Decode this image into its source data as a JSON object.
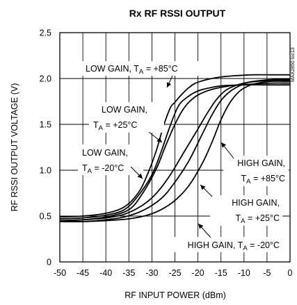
{
  "chart_data": {
    "type": "line",
    "title": "Rx RF RSSI OUTPUT",
    "xlabel": "RF INPUT POWER (dBm)",
    "ylabel": "RF RSSI OUTPUT VOLTAGE (V)",
    "xlim": [
      -50,
      0
    ],
    "ylim": [
      0,
      2.5
    ],
    "xticks": [
      "-50",
      "-45",
      "-40",
      "-35",
      "-30",
      "-25",
      "-20",
      "-15",
      "-10",
      "-5",
      "0"
    ],
    "yticks": [
      "0",
      "0.5",
      "1.0",
      "1.5",
      "2.0",
      "2.5"
    ],
    "grid": true,
    "watermark": "MAX2850 toc13",
    "series": [
      {
        "name": "LOW GAIN, TA = +85°C",
        "x": [
          -50,
          -45,
          -40,
          -36,
          -33,
          -31,
          -29,
          -27.5,
          -26,
          -25,
          -24,
          -22,
          -20,
          -16,
          -12,
          -8,
          -4,
          0
        ],
        "y": [
          0.49,
          0.5,
          0.53,
          0.6,
          0.75,
          0.95,
          1.22,
          1.48,
          1.68,
          1.74,
          1.8,
          1.9,
          1.96,
          2.01,
          2.03,
          2.04,
          2.04,
          2.04
        ]
      },
      {
        "name": "LOW GAIN, TA = +25°C",
        "x": [
          -50,
          -45,
          -40,
          -36,
          -33,
          -30,
          -28,
          -26.5,
          -25,
          -24,
          -23,
          -21,
          -19,
          -15,
          -10,
          -5,
          0
        ],
        "y": [
          0.47,
          0.48,
          0.51,
          0.57,
          0.72,
          0.95,
          1.2,
          1.42,
          1.62,
          1.72,
          1.77,
          1.84,
          1.88,
          1.92,
          1.93,
          1.93,
          1.93
        ]
      },
      {
        "name": "LOW GAIN, TA = -20°C",
        "x": [
          -50,
          -45,
          -40,
          -35,
          -32,
          -29,
          -27,
          -25,
          -23.5,
          -22,
          -20,
          -17,
          -13,
          -8,
          -4,
          0
        ],
        "y": [
          0.45,
          0.46,
          0.49,
          0.57,
          0.75,
          1.02,
          1.27,
          1.5,
          1.64,
          1.74,
          1.82,
          1.88,
          1.92,
          1.94,
          1.95,
          1.95
        ]
      },
      {
        "name": "HIGH GAIN, TA = +85°C",
        "x": [
          -50,
          -45,
          -40,
          -36,
          -32,
          -29,
          -26,
          -23,
          -20,
          -18,
          -16,
          -14,
          -12,
          -10,
          -7,
          -4,
          0
        ],
        "y": [
          0.45,
          0.46,
          0.48,
          0.52,
          0.62,
          0.75,
          0.95,
          1.2,
          1.45,
          1.62,
          1.77,
          1.87,
          1.92,
          1.95,
          1.97,
          1.98,
          1.98
        ]
      },
      {
        "name": "HIGH GAIN, TA = +25°C",
        "x": [
          -50,
          -45,
          -40,
          -36,
          -32,
          -28,
          -25,
          -22,
          -19,
          -17,
          -15,
          -13,
          -11,
          -9,
          -6,
          -3,
          0
        ],
        "y": [
          0.44,
          0.44,
          0.46,
          0.49,
          0.56,
          0.69,
          0.87,
          1.1,
          1.4,
          1.6,
          1.76,
          1.86,
          1.92,
          1.96,
          1.98,
          1.99,
          1.99
        ]
      },
      {
        "name": "HIGH GAIN, TA = -20°C",
        "x": [
          -50,
          -45,
          -40,
          -35,
          -31,
          -28,
          -25,
          -22,
          -19,
          -17,
          -15,
          -13,
          -11,
          -9,
          -7,
          -4,
          0
        ],
        "y": [
          0.44,
          0.44,
          0.45,
          0.47,
          0.51,
          0.57,
          0.67,
          0.83,
          1.08,
          1.3,
          1.55,
          1.74,
          1.86,
          1.92,
          1.95,
          1.97,
          1.97
        ]
      }
    ],
    "annotations": [
      {
        "main": "LOW GAIN, T",
        "sub": "A",
        "rest": " = +85°C"
      },
      {
        "line1": "LOW GAIN,",
        "main": "T",
        "sub": "A",
        "rest": " = +25°C"
      },
      {
        "line1": "LOW GAIN,",
        "main": "T",
        "sub": "A",
        "rest": " = -20°C"
      },
      {
        "line1": "HIGH GAIN,",
        "main": "T",
        "sub": "A",
        "rest": " = +85°C"
      },
      {
        "line1": "HIGH GAIN,",
        "main": "T",
        "sub": "A",
        "rest": " = +25°C"
      },
      {
        "main": "HIGH GAIN, T",
        "sub": "A",
        "rest": " = -20°C"
      }
    ]
  }
}
